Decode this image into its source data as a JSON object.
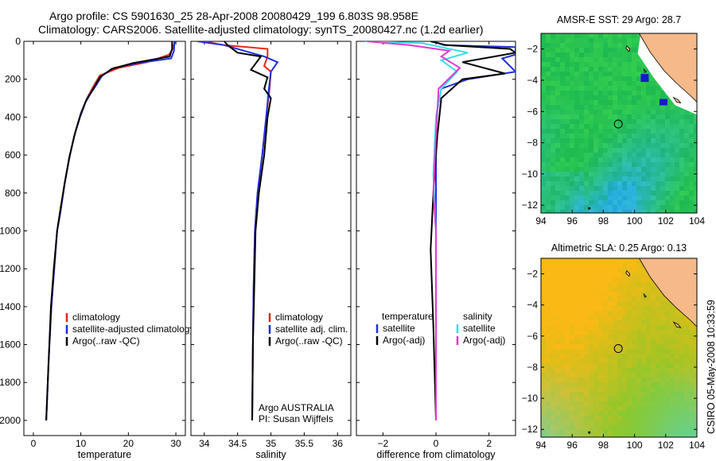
{
  "header": {
    "line1": "Argo profile: CS 5901630_25 28-Apr-2008 20080429_199 6.803S 98.958E",
    "line2": "Climatology: CARS2006. Satellite-adjusted climatology: synTS_20080427.nc (1.2d earlier)"
  },
  "side_label": "CSIRO 05-May-2008 10:33:59",
  "colors": {
    "red": "#e8261a",
    "blue": "#1f2ee0",
    "black": "#000000",
    "cyan": "#33e0e8",
    "magenta": "#e03ad0"
  },
  "chart_data": [
    {
      "type": "line",
      "name": "temperature-panel",
      "xlabel": "temperature",
      "xlim": [
        -2,
        32
      ],
      "ylim": [
        2080,
        0
      ],
      "xticks": [
        0,
        10,
        20,
        30
      ],
      "yticks": [
        0,
        200,
        400,
        600,
        800,
        1000,
        1200,
        1400,
        1600,
        1800,
        2000
      ],
      "series": [
        {
          "name": "climatology",
          "color": "#e8261a",
          "points": [
            [
              29.8,
              0
            ],
            [
              29.3,
              40
            ],
            [
              28.6,
              70
            ],
            [
              24,
              110
            ],
            [
              18,
              140
            ],
            [
              14,
              180
            ],
            [
              12.8,
              230
            ],
            [
              11.3,
              300
            ],
            [
              10,
              380
            ],
            [
              8.8,
              480
            ],
            [
              7.7,
              600
            ],
            [
              6.6,
              750
            ],
            [
              5.7,
              900
            ],
            [
              5,
              1000
            ],
            [
              4.4,
              1200
            ],
            [
              3.8,
              1400
            ],
            [
              3.2,
              1700
            ],
            [
              2.7,
              2000
            ]
          ]
        },
        {
          "name": "satellite-adjusted climatology",
          "color": "#1f2ee0",
          "points": [
            [
              29.7,
              0
            ],
            [
              29.6,
              50
            ],
            [
              29,
              90
            ],
            [
              22,
              115
            ],
            [
              17,
              140
            ],
            [
              14.5,
              180
            ],
            [
              13,
              240
            ],
            [
              11.3,
              300
            ],
            [
              10,
              380
            ],
            [
              8.8,
              480
            ],
            [
              7.7,
              600
            ],
            [
              6.6,
              750
            ],
            [
              5.7,
              900
            ],
            [
              5,
              1000
            ],
            [
              4.4,
              1200
            ],
            [
              3.8,
              1400
            ],
            [
              3.2,
              1700
            ],
            [
              2.7,
              2000
            ]
          ]
        },
        {
          "name": "Argo(..raw -QC)",
          "color": "#000000",
          "points": [
            [
              29.2,
              0
            ],
            [
              29.2,
              40
            ],
            [
              28.7,
              80
            ],
            [
              21,
              115
            ],
            [
              16.5,
              145
            ],
            [
              14,
              190
            ],
            [
              12.6,
              250
            ],
            [
              11,
              320
            ],
            [
              9.8,
              400
            ],
            [
              8.6,
              500
            ],
            [
              7.5,
              620
            ],
            [
              6.5,
              760
            ],
            [
              5.6,
              900
            ],
            [
              5,
              1000
            ],
            [
              4.3,
              1200
            ],
            [
              3.7,
              1400
            ],
            [
              3.2,
              1700
            ],
            [
              2.7,
              2000
            ]
          ]
        }
      ],
      "legend": [
        "climatology",
        "satellite-adjusted climatology",
        "Argo(..raw -QC)"
      ]
    },
    {
      "type": "line",
      "name": "salinity-panel",
      "xlabel": "salinity",
      "xlim": [
        33.8,
        36.2
      ],
      "ylim": [
        2080,
        0
      ],
      "xticks": [
        34,
        34.5,
        35,
        35.5,
        36
      ],
      "xticklabels": [
        "34",
        "34.5",
        "35",
        "35.5",
        "36"
      ],
      "series": [
        {
          "name": "climatology",
          "color": "#e8261a",
          "points": [
            [
              34.0,
              0
            ],
            [
              34.3,
              20
            ],
            [
              34.95,
              40
            ],
            [
              34.95,
              80
            ],
            [
              34.9,
              130
            ],
            [
              35.0,
              160
            ],
            [
              34.98,
              250
            ],
            [
              34.93,
              400
            ],
            [
              34.87,
              600
            ],
            [
              34.8,
              800
            ],
            [
              34.76,
              1000
            ],
            [
              34.74,
              1300
            ],
            [
              34.73,
              1600
            ],
            [
              34.72,
              2000
            ]
          ]
        },
        {
          "name": "satellite adj. clim.",
          "color": "#1f2ee0",
          "points": [
            [
              33.9,
              0
            ],
            [
              34.3,
              20
            ],
            [
              34.6,
              50
            ],
            [
              34.9,
              80
            ],
            [
              35.1,
              110
            ],
            [
              35.0,
              160
            ],
            [
              34.97,
              250
            ],
            [
              34.93,
              400
            ],
            [
              34.87,
              600
            ],
            [
              34.8,
              800
            ],
            [
              34.76,
              1000
            ],
            [
              34.74,
              1300
            ],
            [
              34.73,
              1600
            ],
            [
              34.72,
              2000
            ]
          ]
        },
        {
          "name": "Argo(..raw -QC)",
          "color": "#000000",
          "points": [
            [
              34.3,
              0
            ],
            [
              34.35,
              20
            ],
            [
              34.5,
              60
            ],
            [
              34.85,
              80
            ],
            [
              34.7,
              150
            ],
            [
              34.95,
              190
            ],
            [
              34.9,
              250
            ],
            [
              35.0,
              300
            ],
            [
              34.95,
              400
            ],
            [
              34.9,
              600
            ],
            [
              34.82,
              800
            ],
            [
              34.77,
              1000
            ],
            [
              34.75,
              1300
            ],
            [
              34.73,
              1600
            ],
            [
              34.72,
              2000
            ]
          ]
        }
      ],
      "legend": [
        "climatology",
        "satellite adj. clim.",
        "Argo(..raw -QC)"
      ],
      "credit_line1": "Argo AUSTRALIA",
      "credit_line2": "PI: Susan Wijffels"
    },
    {
      "type": "line",
      "name": "difference-panel",
      "xlabel": "difference from climatology",
      "xlim": [
        -3,
        3
      ],
      "ylim": [
        2080,
        0
      ],
      "xticks": [
        -2,
        0,
        2
      ],
      "xticklabels": [
        "−2",
        "0",
        "2"
      ],
      "series": [
        {
          "name": "temperature satellite",
          "color": "#1f2ee0",
          "points": [
            [
              -0.1,
              0
            ],
            [
              0.3,
              20
            ],
            [
              3,
              30
            ],
            [
              3,
              70
            ],
            [
              2.5,
              90
            ],
            [
              3,
              160
            ],
            [
              1.2,
              200
            ],
            [
              0.2,
              250
            ],
            [
              0,
              400
            ],
            [
              0,
              1000
            ],
            [
              0,
              2000
            ]
          ]
        },
        {
          "name": "temperature Argo(-adj)",
          "color": "#000000",
          "points": [
            [
              -0.2,
              0
            ],
            [
              0.4,
              20
            ],
            [
              2.8,
              40
            ],
            [
              3,
              60
            ],
            [
              2.2,
              80
            ],
            [
              1,
              110
            ],
            [
              2.6,
              170
            ],
            [
              1,
              200
            ],
            [
              0.2,
              300
            ],
            [
              0.05,
              500
            ],
            [
              -0.1,
              800
            ],
            [
              -0.2,
              1100
            ],
            [
              -0.1,
              1500
            ],
            [
              0,
              2000
            ]
          ]
        },
        {
          "name": "salinity satellite",
          "color": "#33e0e8",
          "points": [
            [
              -2.7,
              0
            ],
            [
              -0.5,
              10
            ],
            [
              1.2,
              60
            ],
            [
              0.2,
              100
            ],
            [
              0.8,
              160
            ],
            [
              0.2,
              250
            ],
            [
              0,
              400
            ],
            [
              -0.1,
              700
            ],
            [
              0,
              1000
            ],
            [
              0,
              2000
            ]
          ]
        },
        {
          "name": "salinity Argo(-adj)",
          "color": "#e03ad0",
          "points": [
            [
              -2.6,
              0
            ],
            [
              -1,
              20
            ],
            [
              0.5,
              50
            ],
            [
              0.2,
              80
            ],
            [
              0.9,
              140
            ],
            [
              0.1,
              250
            ],
            [
              0,
              500
            ],
            [
              -0.1,
              800
            ],
            [
              0,
              1000
            ],
            [
              0,
              2000
            ]
          ]
        }
      ],
      "legend_temperature_title": "temperature",
      "legend_salinity_title": "salinity",
      "legend": [
        "satellite",
        "Argo(-adj)",
        "satellite",
        "Argo(-adj)"
      ]
    },
    {
      "type": "heatmap",
      "name": "sst-map",
      "title": "AMSR-E SST: 29 Argo: 28.7",
      "xlim": [
        94,
        104
      ],
      "ylim": [
        -12.5,
        -1
      ],
      "xticks": [
        94,
        96,
        98,
        100,
        102,
        104
      ],
      "yticks": [
        -2,
        -4,
        -6,
        -8,
        -10,
        -12
      ],
      "float_location": [
        98.958,
        -6.803
      ]
    },
    {
      "type": "heatmap",
      "name": "sla-map",
      "title": "Altimetric SLA: 0.25 Argo: 0.13",
      "xlim": [
        94,
        104
      ],
      "ylim": [
        -12.5,
        -1
      ],
      "xticks": [
        94,
        96,
        98,
        100,
        102,
        104
      ],
      "yticks": [
        -2,
        -4,
        -6,
        -8,
        -10,
        -12
      ],
      "float_location": [
        98.958,
        -6.803
      ]
    }
  ]
}
